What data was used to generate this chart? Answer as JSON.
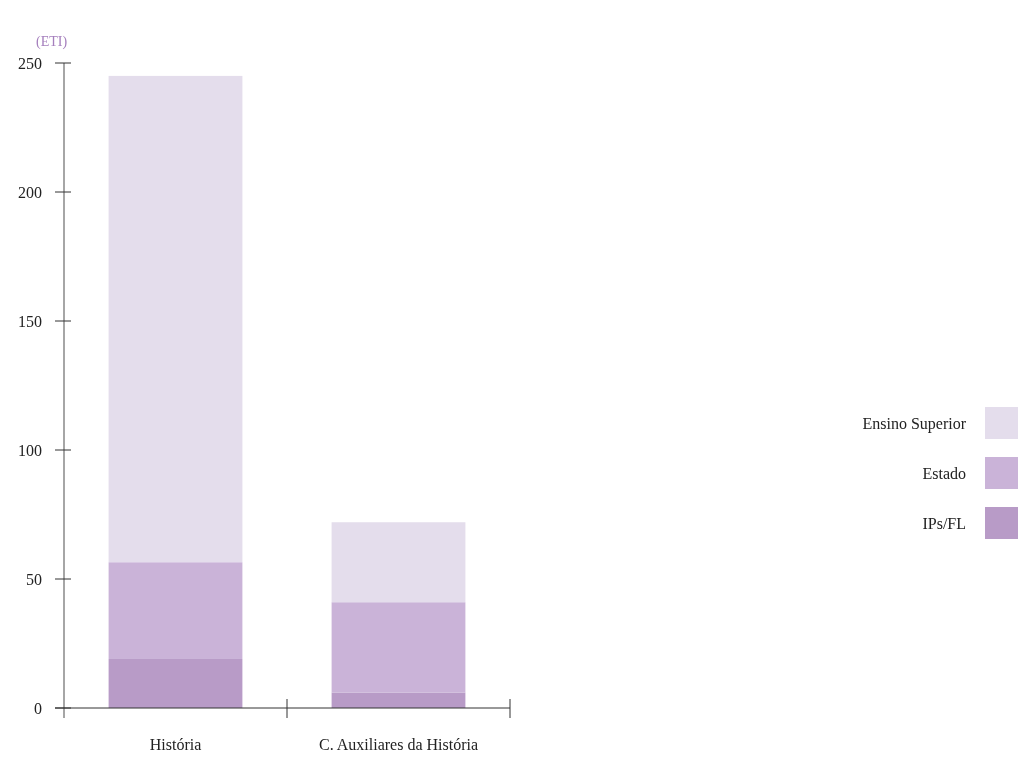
{
  "chart_data": {
    "type": "bar",
    "stacked": true,
    "ylabel": "(ETI)",
    "categories": [
      "História",
      "C. Auxiliares da História"
    ],
    "series": [
      {
        "name": "IPs/FL",
        "color": "#b89bc7",
        "values": [
          19,
          6
        ]
      },
      {
        "name": "Estado",
        "color": "#cab3d8",
        "values": [
          37.5,
          35
        ]
      },
      {
        "name": "Ensino Superior",
        "color": "#e4ddec",
        "values": [
          188.5,
          31
        ]
      }
    ],
    "ylim": [
      0,
      250
    ],
    "yticks": [
      0,
      50,
      100,
      150,
      200,
      250
    ],
    "legend": "right",
    "grid": false
  }
}
